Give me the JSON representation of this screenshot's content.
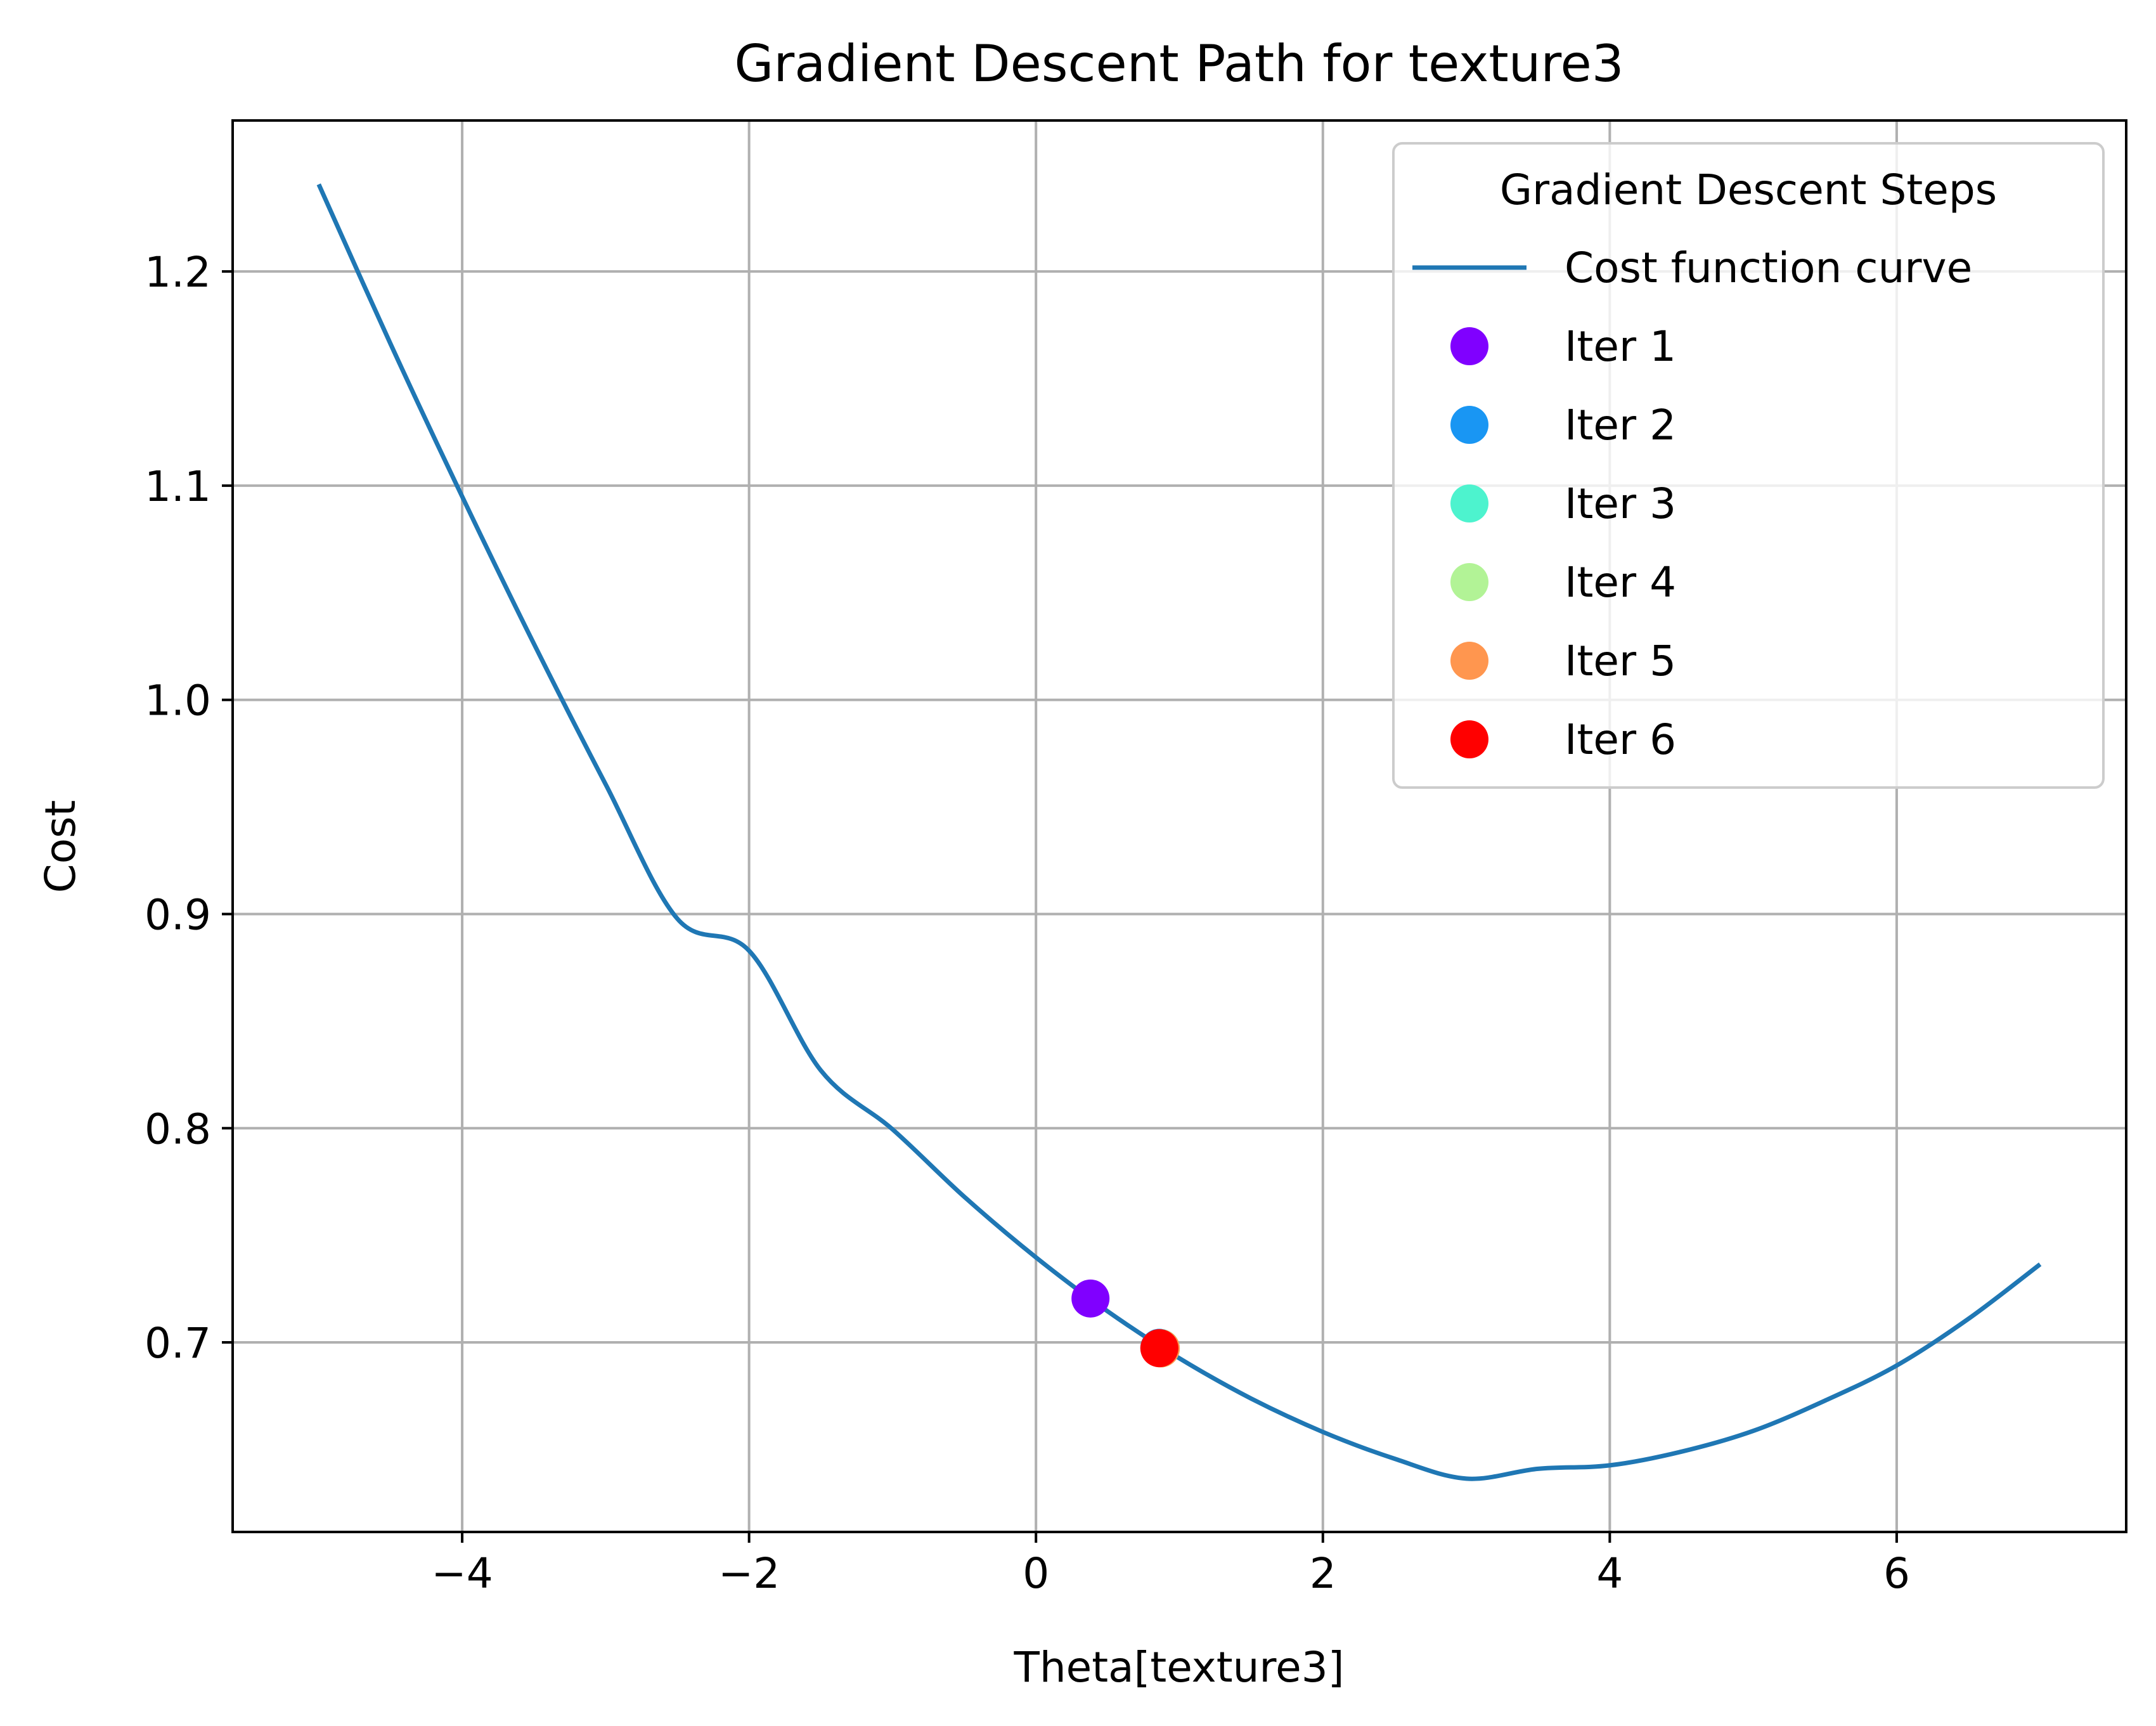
{
  "chart_data": {
    "type": "line",
    "title": "Gradient Descent Path for texture3",
    "xlabel": "Theta[texture3]",
    "ylabel": "Cost",
    "xlim": [
      -5.6,
      7.6
    ],
    "ylim": [
      0.6115,
      1.2705
    ],
    "x_ticks": [
      -4,
      -2,
      0,
      2,
      4,
      6
    ],
    "x_tick_labels": [
      "−4",
      "−2",
      "0",
      "2",
      "4",
      "6"
    ],
    "y_ticks": [
      0.7,
      0.8,
      0.9,
      1.0,
      1.1,
      1.2
    ],
    "y_tick_labels": [
      "0.7",
      "0.8",
      "0.9",
      "1.0",
      "1.1",
      "1.2"
    ],
    "grid": true,
    "legend": {
      "title": "Gradient Descent Steps",
      "placement": "upper right"
    },
    "curve": {
      "name": "Cost function curve",
      "color": "#1f77b4",
      "x": [
        -5,
        -4.5,
        -4,
        -3.5,
        -3,
        -2.5,
        -2,
        -1.5,
        -1,
        -0.5,
        0,
        0.5,
        1,
        1.5,
        2,
        2.5,
        3,
        3.5,
        4,
        4.5,
        5,
        5.5,
        6,
        6.5,
        7
      ],
      "y": [
        1.2407,
        1.1663,
        1.0949,
        1.0262,
        0.9606,
        0.8978,
        0.8829,
        0.827,
        0.7995,
        0.768,
        0.7397,
        0.7145,
        0.6926,
        0.6738,
        0.6582,
        0.6457,
        0.6364,
        0.641,
        0.6426,
        0.649,
        0.6587,
        0.6728,
        0.6892,
        0.711,
        0.7365
      ]
    },
    "points": [
      {
        "name": "Iter 1",
        "color": "#8000ff",
        "x": 0.38,
        "y": 0.7205
      },
      {
        "name": "Iter 2",
        "color": "#1996f3",
        "x": 0.86,
        "y": 0.6975
      },
      {
        "name": "Iter 3",
        "color": "#4df3ce",
        "x": 0.87,
        "y": 0.6973
      },
      {
        "name": "Iter 4",
        "color": "#b2f396",
        "x": 0.87,
        "y": 0.6972
      },
      {
        "name": "Iter 5",
        "color": "#ff964f",
        "x": 0.87,
        "y": 0.6972
      },
      {
        "name": "Iter 6",
        "color": "#ff0000",
        "x": 0.86,
        "y": 0.6973
      }
    ]
  }
}
